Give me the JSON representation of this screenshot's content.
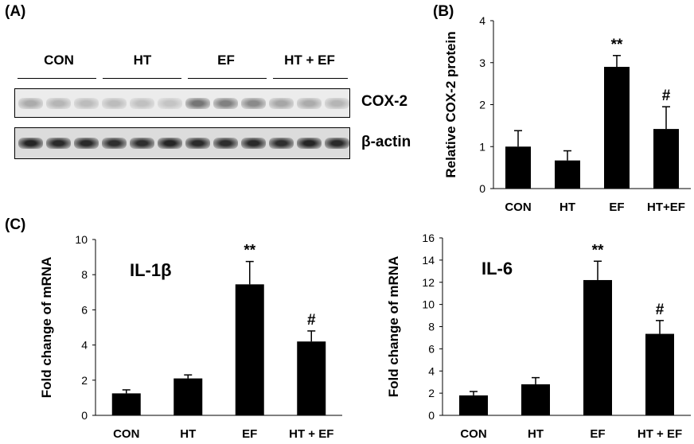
{
  "panels": {
    "a": "(A)",
    "b": "(B)",
    "c": "(C)"
  },
  "blot": {
    "groups": [
      "CON",
      "HT",
      "EF",
      "HT + EF"
    ],
    "proteins": [
      "COX-2",
      "β-actin"
    ],
    "cox2_intensity": [
      0.3,
      0.25,
      0.22,
      0.22,
      0.2,
      0.18,
      0.55,
      0.5,
      0.45,
      0.32,
      0.3,
      0.25
    ],
    "actin_intensity": [
      0.92,
      0.9,
      0.9,
      0.88,
      0.88,
      0.92,
      0.9,
      0.88,
      0.9,
      0.88,
      0.92,
      0.9
    ]
  },
  "chart_data": [
    {
      "type": "bar",
      "panel": "(B)",
      "title": "",
      "ylabel": "Relative COX-2 protein",
      "xlabel": "",
      "categories": [
        "CON",
        "HT",
        "EF",
        "HT+EF"
      ],
      "values": [
        1.0,
        0.67,
        2.9,
        1.42
      ],
      "errors": [
        0.38,
        0.23,
        0.27,
        0.53
      ],
      "annotations": [
        "",
        "",
        "**",
        "#"
      ],
      "ylim": [
        0,
        4
      ],
      "yticks": [
        0,
        1,
        2,
        3,
        4
      ],
      "grid": false,
      "color": "#000000"
    },
    {
      "type": "bar",
      "panel": "(C)",
      "title": "IL-1β",
      "ylabel": "Fold change of mRNA",
      "xlabel": "",
      "categories": [
        "CON",
        "HT",
        "EF",
        "HT + EF"
      ],
      "values": [
        1.25,
        2.1,
        7.45,
        4.2
      ],
      "errors": [
        0.2,
        0.2,
        1.3,
        0.6
      ],
      "annotations": [
        "",
        "",
        "**",
        "#"
      ],
      "ylim": [
        0,
        10
      ],
      "yticks": [
        0,
        2,
        4,
        6,
        8,
        10
      ],
      "grid": false,
      "color": "#000000"
    },
    {
      "type": "bar",
      "panel": "(C)",
      "title": "IL-6",
      "ylabel": "Fold change of mRNA",
      "xlabel": "",
      "categories": [
        "CON",
        "HT",
        "EF",
        "HT + EF"
      ],
      "values": [
        1.8,
        2.8,
        12.2,
        7.35
      ],
      "errors": [
        0.35,
        0.6,
        1.7,
        1.2
      ],
      "annotations": [
        "",
        "",
        "**",
        "#"
      ],
      "ylim": [
        0,
        16
      ],
      "yticks": [
        0,
        2,
        4,
        6,
        8,
        10,
        12,
        14,
        16
      ],
      "grid": false,
      "color": "#000000"
    }
  ]
}
